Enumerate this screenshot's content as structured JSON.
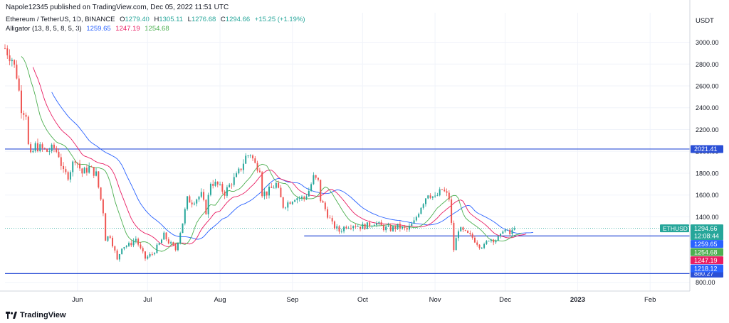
{
  "header": {
    "published": "Napole12345 published on TradingView.com, Dec 05, 2022 11:51 UTC"
  },
  "symbol": {
    "name": "Ethereum / TetherUS, 1D, BINANCE",
    "open_label": "O",
    "open": "1279.40",
    "high_label": "H",
    "high": "1305.11",
    "low_label": "L",
    "low": "1276.68",
    "close_label": "C",
    "close": "1294.66",
    "change": "+15.25 (+1.19%)"
  },
  "indicator": {
    "label": "Alligator (13, 8, 5, 8, 5, 3)",
    "jaw": "1259.65",
    "teeth": "1247.19",
    "lips": "1254.68"
  },
  "footer": {
    "brand": "TradingView"
  },
  "colors": {
    "up": "#26a69a",
    "down": "#ef5350",
    "jaw": "#2962ff",
    "teeth": "#e91e63",
    "lips": "#4caf50",
    "hline": "#2a4fd6",
    "grid": "#f0f3fa",
    "price_tag": "#26a69a"
  },
  "chart_data": {
    "type": "candlestick",
    "currency": "USDT",
    "y_range": [
      720,
      3270
    ],
    "y_ticks": [
      800,
      1400,
      1600,
      1800,
      2000,
      2200,
      2400,
      2600,
      2800,
      3000
    ],
    "y_tick_labels": [
      "800.00",
      "1400.00",
      "1600.00",
      "1800.00",
      "2000.00",
      "2200.00",
      "2400.00",
      "2600.00",
      "2800.00",
      "3000.00"
    ],
    "x_range": [
      "2022-05-01",
      "2023-02-18"
    ],
    "x_ticks": [
      {
        "date": "2022-06-01",
        "label": "Jun"
      },
      {
        "date": "2022-07-01",
        "label": "Jul"
      },
      {
        "date": "2022-08-01",
        "label": "Aug"
      },
      {
        "date": "2022-09-01",
        "label": "Sep"
      },
      {
        "date": "2022-10-01",
        "label": "Oct"
      },
      {
        "date": "2022-11-01",
        "label": "Nov"
      },
      {
        "date": "2022-12-01",
        "label": "Dec"
      },
      {
        "date": "2023-01-01",
        "label": "2023"
      },
      {
        "date": "2023-02-01",
        "label": "Feb"
      }
    ],
    "horizontal_lines": [
      {
        "value": 2021.41,
        "label": "2021.41",
        "from": "2022-05-01"
      },
      {
        "value": 1225,
        "label": "",
        "from": "2022-09-06"
      },
      {
        "value": 880.27,
        "label": "880.27",
        "from": "2022-05-01"
      }
    ],
    "last_price": {
      "value": 1294.66,
      "label": "1294.66",
      "symbol": "ETHUSDT",
      "countdown": "12:08:44"
    },
    "alligator_tags": [
      {
        "value": 1259.65,
        "label": "1259.65",
        "line": "jaw"
      },
      {
        "value": 1254.68,
        "label": "1254.68",
        "line": "lips"
      },
      {
        "value": 1247.19,
        "label": "1247.19",
        "line": "teeth"
      },
      {
        "value": 1218.12,
        "label": "1218.12",
        "line": "jaw"
      }
    ],
    "closes": [
      {
        "date": "2022-05-01",
        "value": 2945
      },
      {
        "date": "2022-05-04",
        "value": 2850
      },
      {
        "date": "2022-05-06",
        "value": 2700
      },
      {
        "date": "2022-05-08",
        "value": 2400
      },
      {
        "date": "2022-05-10",
        "value": 2350
      },
      {
        "date": "2022-05-11",
        "value": 2050
      },
      {
        "date": "2022-05-12",
        "value": 1950
      },
      {
        "date": "2022-05-14",
        "value": 2050
      },
      {
        "date": "2022-05-16",
        "value": 2030
      },
      {
        "date": "2022-05-19",
        "value": 2000
      },
      {
        "date": "2022-05-22",
        "value": 2030
      },
      {
        "date": "2022-05-24",
        "value": 1970
      },
      {
        "date": "2022-05-26",
        "value": 1800
      },
      {
        "date": "2022-05-28",
        "value": 1780
      },
      {
        "date": "2022-05-31",
        "value": 1940
      },
      {
        "date": "2022-06-03",
        "value": 1800
      },
      {
        "date": "2022-06-06",
        "value": 1850
      },
      {
        "date": "2022-06-09",
        "value": 1790
      },
      {
        "date": "2022-06-10",
        "value": 1670
      },
      {
        "date": "2022-06-12",
        "value": 1450
      },
      {
        "date": "2022-06-13",
        "value": 1200
      },
      {
        "date": "2022-06-15",
        "value": 1230
      },
      {
        "date": "2022-06-17",
        "value": 1080
      },
      {
        "date": "2022-06-18",
        "value": 1000
      },
      {
        "date": "2022-06-20",
        "value": 1130
      },
      {
        "date": "2022-06-23",
        "value": 1140
      },
      {
        "date": "2022-06-26",
        "value": 1200
      },
      {
        "date": "2022-06-28",
        "value": 1100
      },
      {
        "date": "2022-06-30",
        "value": 1020
      },
      {
        "date": "2022-07-03",
        "value": 1060
      },
      {
        "date": "2022-07-06",
        "value": 1150
      },
      {
        "date": "2022-07-08",
        "value": 1230
      },
      {
        "date": "2022-07-10",
        "value": 1170
      },
      {
        "date": "2022-07-13",
        "value": 1100
      },
      {
        "date": "2022-07-16",
        "value": 1350
      },
      {
        "date": "2022-07-18",
        "value": 1560
      },
      {
        "date": "2022-07-20",
        "value": 1540
      },
      {
        "date": "2022-07-24",
        "value": 1600
      },
      {
        "date": "2022-07-26",
        "value": 1450
      },
      {
        "date": "2022-07-28",
        "value": 1720
      },
      {
        "date": "2022-07-31",
        "value": 1690
      },
      {
        "date": "2022-08-03",
        "value": 1620
      },
      {
        "date": "2022-08-06",
        "value": 1720
      },
      {
        "date": "2022-08-08",
        "value": 1770
      },
      {
        "date": "2022-08-10",
        "value": 1850
      },
      {
        "date": "2022-08-12",
        "value": 1950
      },
      {
        "date": "2022-08-14",
        "value": 1980
      },
      {
        "date": "2022-08-16",
        "value": 1880
      },
      {
        "date": "2022-08-18",
        "value": 1850
      },
      {
        "date": "2022-08-19",
        "value": 1620
      },
      {
        "date": "2022-08-21",
        "value": 1620
      },
      {
        "date": "2022-08-25",
        "value": 1700
      },
      {
        "date": "2022-08-28",
        "value": 1500
      },
      {
        "date": "2022-08-30",
        "value": 1530
      },
      {
        "date": "2022-09-02",
        "value": 1580
      },
      {
        "date": "2022-09-06",
        "value": 1570
      },
      {
        "date": "2022-09-08",
        "value": 1640
      },
      {
        "date": "2022-09-10",
        "value": 1760
      },
      {
        "date": "2022-09-12",
        "value": 1720
      },
      {
        "date": "2022-09-13",
        "value": 1560
      },
      {
        "date": "2022-09-15",
        "value": 1470
      },
      {
        "date": "2022-09-18",
        "value": 1330
      },
      {
        "date": "2022-09-21",
        "value": 1270
      },
      {
        "date": "2022-09-24",
        "value": 1320
      },
      {
        "date": "2022-09-27",
        "value": 1330
      },
      {
        "date": "2022-09-30",
        "value": 1310
      },
      {
        "date": "2022-10-03",
        "value": 1320
      },
      {
        "date": "2022-10-06",
        "value": 1350
      },
      {
        "date": "2022-10-10",
        "value": 1300
      },
      {
        "date": "2022-10-13",
        "value": 1290
      },
      {
        "date": "2022-10-16",
        "value": 1310
      },
      {
        "date": "2022-10-20",
        "value": 1280
      },
      {
        "date": "2022-10-23",
        "value": 1350
      },
      {
        "date": "2022-10-26",
        "value": 1500
      },
      {
        "date": "2022-10-29",
        "value": 1620
      },
      {
        "date": "2022-11-01",
        "value": 1570
      },
      {
        "date": "2022-11-04",
        "value": 1650
      },
      {
        "date": "2022-11-06",
        "value": 1600
      },
      {
        "date": "2022-11-07",
        "value": 1570
      },
      {
        "date": "2022-11-08",
        "value": 1330
      },
      {
        "date": "2022-11-09",
        "value": 1100
      },
      {
        "date": "2022-11-11",
        "value": 1290
      },
      {
        "date": "2022-11-14",
        "value": 1250
      },
      {
        "date": "2022-11-17",
        "value": 1210
      },
      {
        "date": "2022-11-20",
        "value": 1140
      },
      {
        "date": "2022-11-22",
        "value": 1130
      },
      {
        "date": "2022-11-24",
        "value": 1200
      },
      {
        "date": "2022-11-27",
        "value": 1190
      },
      {
        "date": "2022-11-29",
        "value": 1220
      },
      {
        "date": "2022-11-30",
        "value": 1290
      },
      {
        "date": "2022-12-01",
        "value": 1275
      },
      {
        "date": "2022-12-03",
        "value": 1240
      },
      {
        "date": "2022-12-05",
        "value": 1295
      }
    ]
  }
}
